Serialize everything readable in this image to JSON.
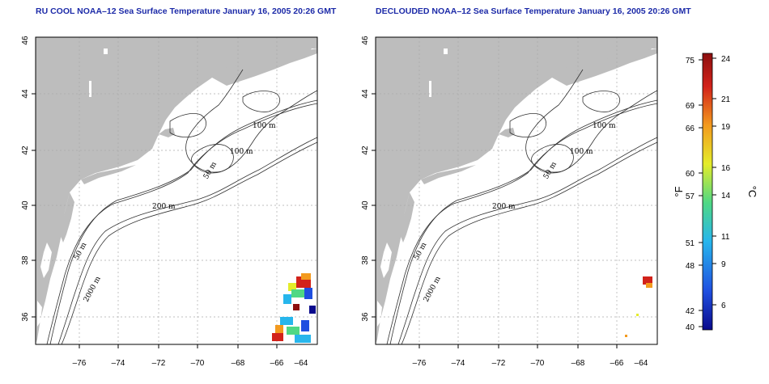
{
  "maps": [
    {
      "id": "left",
      "title": "RU COOL NOAA–12 Sea Surface Temperature January 16, 2005 20:26 GMT",
      "xticks": [
        "–76",
        "–74",
        "–72",
        "–70",
        "–68",
        "–66",
        "–64"
      ],
      "yticks": [
        "36",
        "38",
        "40",
        "42",
        "44",
        "46"
      ],
      "contour_labels": [
        "100 m",
        "100 m",
        "50 m",
        "200 m",
        "50 m",
        "2000 m"
      ]
    },
    {
      "id": "right",
      "title": "DECLOUDED NOAA–12 Sea Surface Temperature January 16, 2005 20:26 GMT",
      "xticks": [
        "–76",
        "–74",
        "–72",
        "–70",
        "–68",
        "–66",
        "–64"
      ],
      "yticks": [
        "36",
        "38",
        "40",
        "42",
        "44",
        "46"
      ],
      "contour_labels": [
        "100 m",
        "100 m",
        "50 m",
        "200 m",
        "50 m",
        "2000 m"
      ]
    }
  ],
  "colorbar": {
    "fahrenheit_label": "°F",
    "celsius_label": "°C",
    "fahrenheit_ticks": [
      "75",
      "69",
      "66",
      "60",
      "57",
      "51",
      "48",
      "42",
      "40"
    ],
    "celsius_ticks": [
      "24",
      "21",
      "19",
      "16",
      "14",
      "11",
      "9",
      "6"
    ],
    "colors": [
      "#0a0a8c",
      "#1f4fe0",
      "#27b6ec",
      "#4fd884",
      "#e4ec2a",
      "#f39a1e",
      "#d2221a",
      "#8c0f0f"
    ]
  },
  "colors": {
    "land": "#bdbdbd",
    "water": "#ffffff",
    "title": "#1c2aa8",
    "grid": "#aaaaaa"
  }
}
